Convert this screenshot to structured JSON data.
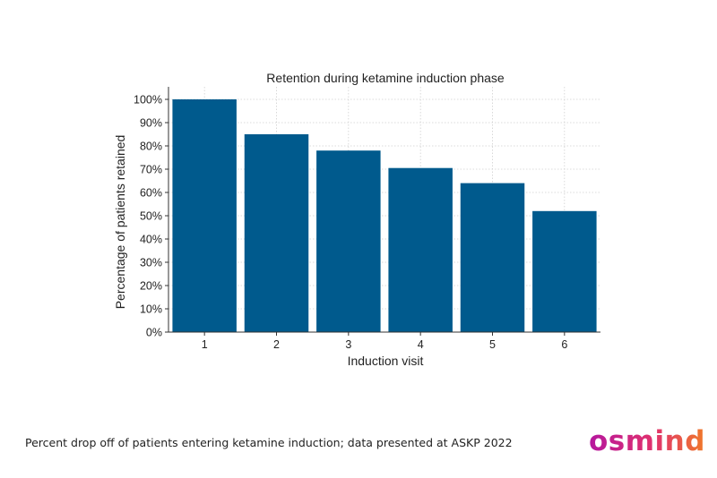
{
  "chart_data": {
    "type": "bar",
    "title": "Retention during ketamine induction phase",
    "xlabel": "Induction visit",
    "ylabel": "Percentage of patients retained",
    "categories": [
      "1",
      "2",
      "3",
      "4",
      "5",
      "6"
    ],
    "values": [
      100,
      85,
      78,
      70.5,
      64,
      52
    ],
    "ylim": [
      0,
      100
    ],
    "yticks": [
      "0%",
      "10%",
      "20%",
      "30%",
      "40%",
      "50%",
      "60%",
      "70%",
      "80%",
      "90%",
      "100%"
    ],
    "grid": true,
    "bar_color": "#005a8d"
  },
  "footer": {
    "caption": "Percent drop off of patients entering ketamine induction; data presented at ASKP 2022",
    "logo_text": "osmind"
  },
  "colors": {
    "logo_start": "#b5179e",
    "logo_end": "#f07a2a"
  }
}
